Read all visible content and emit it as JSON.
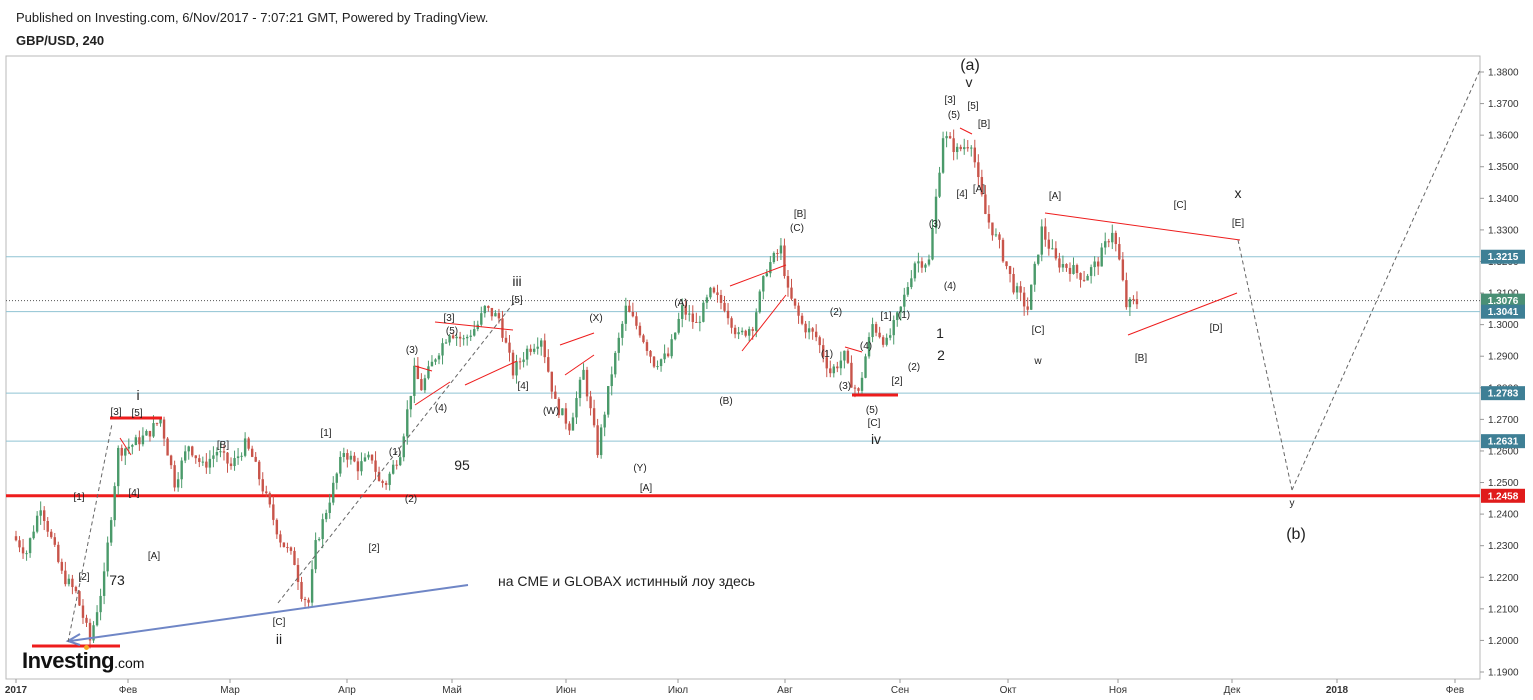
{
  "header": {
    "published": "Published on Investing.com, 6/Nov/2017 - 7:07:21 GMT, Powered by TradingView.",
    "symbol": "GBP/USD, 240"
  },
  "logo": {
    "main": "Investing",
    "suffix": ".com"
  },
  "colors": {
    "up_candle": "#4a9a6a",
    "down_candle": "#c8544a",
    "trendline_red": "#ee1c1c",
    "level_line_blue": "#8fc3d3",
    "arrow_blue": "#6f86c6",
    "dashed_projection": "#666666",
    "last_price_tag": "#4a8f75",
    "level_tag": "#3e7f95",
    "support_tag": "#e01b1b"
  },
  "chart_data": {
    "type": "candlestick",
    "title": "GBP/USD, 240",
    "y_axis": {
      "min": 1.19,
      "max": 1.38,
      "position": "right",
      "ticks": [
        1.19,
        1.2,
        1.21,
        1.22,
        1.23,
        1.24,
        1.25,
        1.26,
        1.27,
        1.28,
        1.29,
        1.3,
        1.31,
        1.32,
        1.33,
        1.34,
        1.35,
        1.36,
        1.37,
        1.38
      ]
    },
    "x_axis": {
      "labels": [
        "2017",
        "Фев",
        "Мар",
        "Апр",
        "Май",
        "Июн",
        "Июл",
        "Авг",
        "Сен",
        "Окт",
        "Ноя",
        "Дек",
        "2018",
        "Фев"
      ]
    },
    "price_levels": [
      {
        "label": "1.3215",
        "value": 1.3215,
        "kind": "level"
      },
      {
        "label": "1.3076",
        "value": 1.3076,
        "kind": "last"
      },
      {
        "label": "1.3041",
        "value": 1.3041,
        "kind": "level"
      },
      {
        "label": "1.2783",
        "value": 1.2783,
        "kind": "level"
      },
      {
        "label": "1.2631",
        "value": 1.2631,
        "kind": "level"
      },
      {
        "label": "1.2458",
        "value": 1.2458,
        "kind": "support"
      }
    ],
    "price_path": [
      [
        0,
        1.233
      ],
      [
        2,
        1.228
      ],
      [
        4,
        1.243
      ],
      [
        7,
        1.221
      ],
      [
        9,
        1.215
      ],
      [
        11,
        1.2
      ],
      [
        13,
        1.22
      ],
      [
        15,
        1.26
      ],
      [
        17,
        1.262
      ],
      [
        19,
        1.265
      ],
      [
        21,
        1.27
      ],
      [
        23,
        1.25
      ],
      [
        25,
        1.262
      ],
      [
        27,
        1.255
      ],
      [
        29,
        1.26
      ],
      [
        31,
        1.255
      ],
      [
        33,
        1.262
      ],
      [
        34,
        1.258
      ],
      [
        36,
        1.245
      ],
      [
        38,
        1.232
      ],
      [
        40,
        1.225
      ],
      [
        41,
        1.215
      ],
      [
        42,
        1.212
      ],
      [
        43,
        1.23
      ],
      [
        45,
        1.245
      ],
      [
        47,
        1.26
      ],
      [
        49,
        1.255
      ],
      [
        51,
        1.258
      ],
      [
        52,
        1.25
      ],
      [
        53,
        1.25
      ],
      [
        55,
        1.26
      ],
      [
        57,
        1.285
      ],
      [
        58,
        1.28
      ],
      [
        60,
        1.29
      ],
      [
        62,
        1.298
      ],
      [
        64,
        1.295
      ],
      [
        66,
        1.3
      ],
      [
        67,
        1.305
      ],
      [
        69,
        1.302
      ],
      [
        71,
        1.285
      ],
      [
        73,
        1.292
      ],
      [
        75,
        1.296
      ],
      [
        77,
        1.275
      ],
      [
        79,
        1.268
      ],
      [
        81,
        1.285
      ],
      [
        83,
        1.26
      ],
      [
        85,
        1.285
      ],
      [
        87,
        1.305
      ],
      [
        89,
        1.298
      ],
      [
        91,
        1.288
      ],
      [
        93,
        1.29
      ],
      [
        95,
        1.305
      ],
      [
        97,
        1.3
      ],
      [
        99,
        1.31
      ],
      [
        101,
        1.306
      ],
      [
        103,
        1.296
      ],
      [
        105,
        1.3
      ],
      [
        107,
        1.318
      ],
      [
        109,
        1.324
      ],
      [
        110,
        1.31
      ],
      [
        112,
        1.3
      ],
      [
        114,
        1.296
      ],
      [
        116,
        1.285
      ],
      [
        118,
        1.29
      ],
      [
        119,
        1.282
      ],
      [
        120,
        1.278
      ],
      [
        121,
        1.29
      ],
      [
        122,
        1.3
      ],
      [
        124,
        1.294
      ],
      [
        126,
        1.305
      ],
      [
        128,
        1.32
      ],
      [
        130,
        1.32
      ],
      [
        131,
        1.34
      ],
      [
        132,
        1.36
      ],
      [
        134,
        1.355
      ],
      [
        136,
        1.358
      ],
      [
        137,
        1.345
      ],
      [
        138,
        1.335
      ],
      [
        140,
        1.325
      ],
      [
        142,
        1.312
      ],
      [
        144,
        1.305
      ],
      [
        146,
        1.33
      ],
      [
        148,
        1.32
      ],
      [
        150,
        1.318
      ],
      [
        152,
        1.315
      ],
      [
        154,
        1.32
      ],
      [
        156,
        1.33
      ],
      [
        157,
        1.32
      ],
      [
        158,
        1.306
      ],
      [
        159,
        1.307
      ]
    ],
    "price_path_x_unit": "calendar weeks from the first candle (2017-01-02)",
    "annotations": [
      {
        "text": "i"
      },
      {
        "text": "ii"
      },
      {
        "text": "iii"
      },
      {
        "text": "iv"
      },
      {
        "text": "v"
      },
      {
        "text": "(a)"
      },
      {
        "text": "(b)"
      },
      {
        "text": "x"
      },
      {
        "text": "y"
      },
      {
        "text": "w"
      },
      {
        "text": "[1]"
      },
      {
        "text": "[2]"
      },
      {
        "text": "[3]"
      },
      {
        "text": "[4]"
      },
      {
        "text": "[5]"
      },
      {
        "text": "[A]"
      },
      {
        "text": "[B]"
      },
      {
        "text": "[C]"
      },
      {
        "text": "[D]"
      },
      {
        "text": "[E]"
      },
      {
        "text": "(1)"
      },
      {
        "text": "(2)"
      },
      {
        "text": "(3)"
      },
      {
        "text": "(4)"
      },
      {
        "text": "(5)"
      },
      {
        "text": "(A)"
      },
      {
        "text": "(B)"
      },
      {
        "text": "(C)"
      },
      {
        "text": "(W)"
      },
      {
        "text": "(X)"
      },
      {
        "text": "(Y)"
      },
      {
        "text": "1"
      },
      {
        "text": "2"
      },
      {
        "text": "73"
      },
      {
        "text": "95"
      },
      {
        "text": "на CME и GLOBAX  истинный лоу здесь"
      }
    ]
  }
}
